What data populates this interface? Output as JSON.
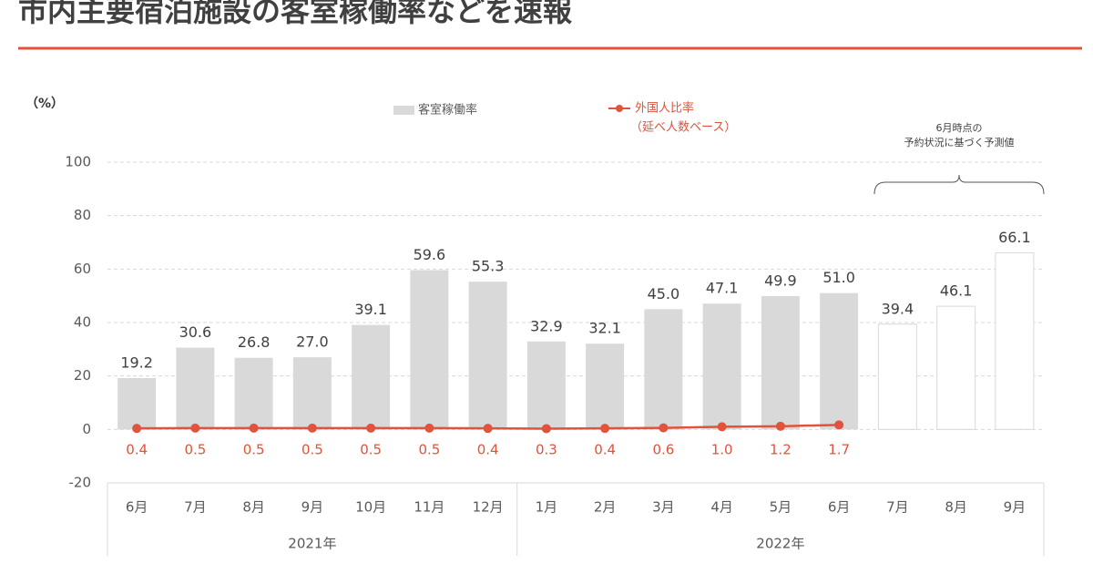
{
  "chart_data": {
    "type": "bar",
    "title": "市内主要宿泊施設の客室稼働率などを速報",
    "y_unit_label": "（%）",
    "category_groups": [
      {
        "label": "2021年",
        "categories": [
          "6月",
          "7月",
          "8月",
          "9月",
          "10月",
          "11月",
          "12月"
        ]
      },
      {
        "label": "2022年",
        "categories": [
          "1月",
          "2月",
          "3月",
          "4月",
          "5月",
          "6月",
          "7月",
          "8月",
          "9月"
        ]
      }
    ],
    "series": [
      {
        "name": "客室稼働率",
        "kind": "bar",
        "color": "#d9d9d9",
        "values": [
          19.2,
          30.6,
          26.8,
          27.0,
          39.1,
          59.6,
          55.3,
          32.9,
          32.1,
          45.0,
          47.1,
          49.9,
          51.0,
          null,
          null,
          null
        ],
        "value_labels": [
          "19.2",
          "30.6",
          "26.8",
          "27.0",
          "39.1",
          "59.6",
          "55.3",
          "32.9",
          "32.1",
          "45.0",
          "47.1",
          "49.9",
          "51.0",
          null,
          null,
          null
        ]
      },
      {
        "kind": "bar",
        "color": "#ffffff",
        "edge_color": "#d9d9d9",
        "values": [
          null,
          null,
          null,
          null,
          null,
          null,
          null,
          null,
          null,
          null,
          null,
          null,
          null,
          39.4,
          46.1,
          66.1
        ],
        "value_labels": [
          null,
          null,
          null,
          null,
          null,
          null,
          null,
          null,
          null,
          null,
          null,
          null,
          null,
          "39.4",
          "46.1",
          "66.1"
        ]
      },
      {
        "name": "外国人比率",
        "name_note": "（延べ人数ベース）",
        "kind": "line",
        "color": "#e0533c",
        "values": [
          0.4,
          0.5,
          0.5,
          0.5,
          0.5,
          0.5,
          0.4,
          0.3,
          0.4,
          0.6,
          1.0,
          1.2,
          1.7,
          null,
          null,
          null
        ],
        "value_labels": [
          "0.4",
          "0.5",
          "0.5",
          "0.5",
          "0.5",
          "0.5",
          "0.4",
          "0.3",
          "0.4",
          "0.6",
          "1.0",
          "1.2",
          "1.7",
          null,
          null,
          null
        ]
      }
    ],
    "annotation": [
      "6月時点の",
      "予約状況に基づく予測値"
    ],
    "ylim": [
      -20,
      100
    ],
    "yticks": [
      -20,
      0,
      20,
      40,
      60,
      80,
      100
    ],
    "grid": true
  }
}
